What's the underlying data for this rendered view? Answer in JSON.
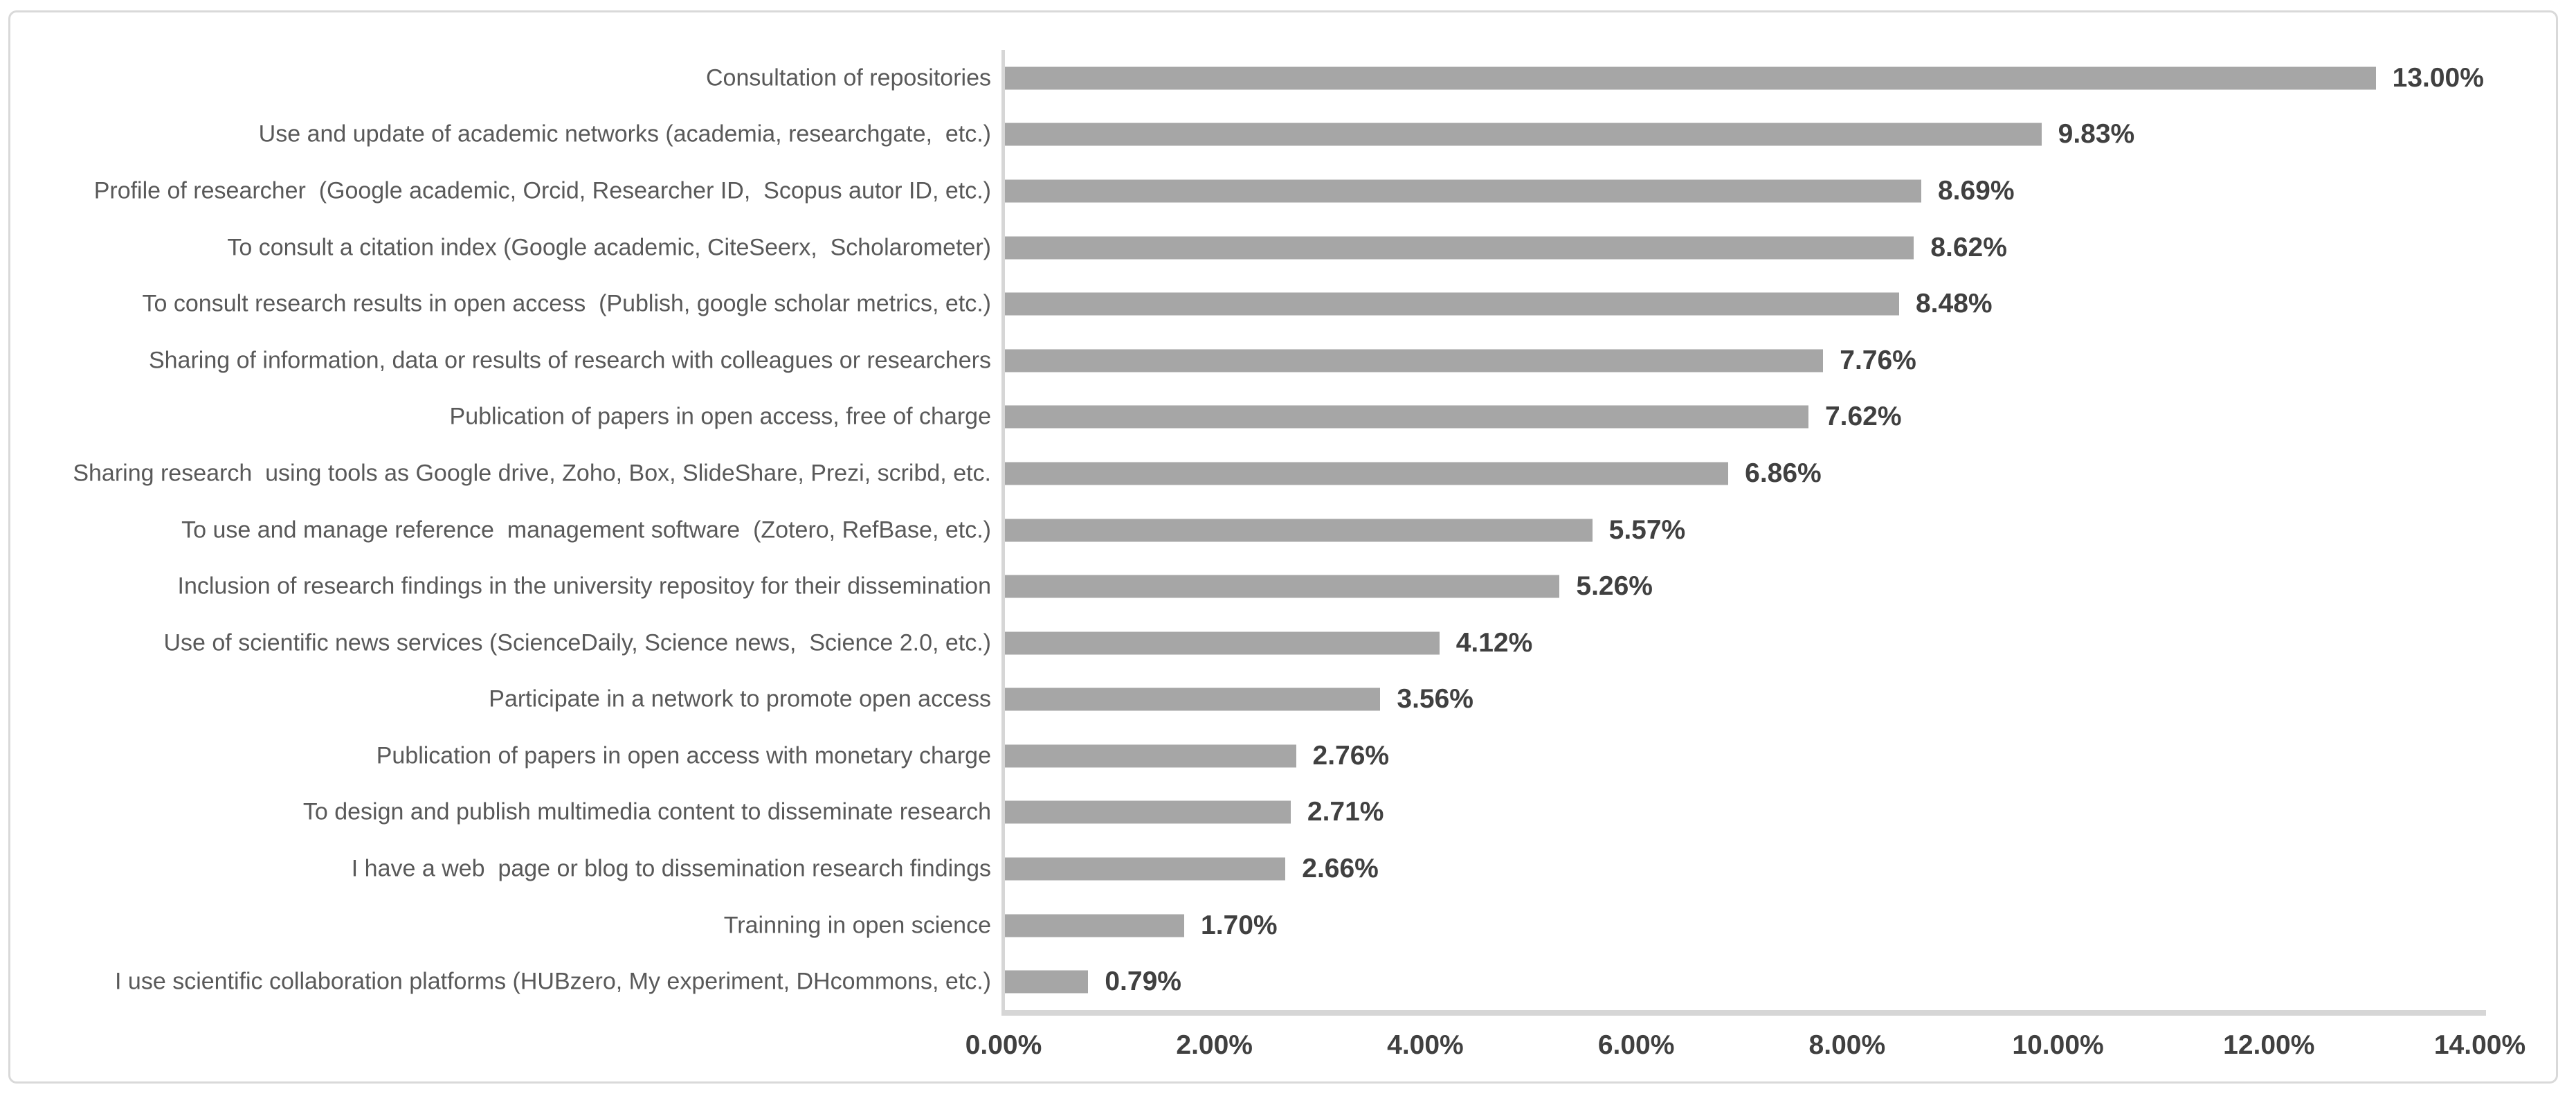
{
  "chart_data": {
    "type": "bar",
    "orientation": "horizontal",
    "title": "",
    "xlabel": "",
    "ylabel": "",
    "xlim": [
      0,
      14
    ],
    "x_tick_labels": [
      "0.00%",
      "2.00%",
      "4.00%",
      "6.00%",
      "8.00%",
      "10.00%",
      "12.00%",
      "14.00%"
    ],
    "grid": false,
    "legend": false,
    "bar_color": "#a6a6a6",
    "category_label_color": "#595959",
    "value_label_color": "#404040",
    "axis_line_color": "#d6d6d6",
    "border_color": "#d9d9d9",
    "categories": [
      "Consultation of repositories",
      "Use and update of academic networks (academia, researchgate,  etc.)",
      "Profile of researcher  (Google academic, Orcid, Researcher ID,  Scopus autor ID, etc.)",
      "To consult a citation index (Google academic, CiteSeerx,  Scholarometer)",
      "To consult research results in open access  (Publish, google scholar metrics, etc.)",
      "Sharing of information, data or results of research with colleagues or researchers",
      "Publication of papers in open access, free of charge",
      "Sharing research  using tools as Google drive, Zoho, Box, SlideShare, Prezi, scribd, etc.",
      "To use and manage reference  management software  (Zotero, RefBase, etc.)",
      "Inclusion of research findings in the university repositoy for their dissemination",
      "Use of scientific news services (ScienceDaily, Science news,  Science 2.0, etc.)",
      "Participate in a network to promote open access",
      "Publication of papers in open access with monetary charge",
      "To design and publish multimedia content to disseminate research",
      "I have a web  page or blog to dissemination research findings",
      "Trainning in open science",
      "I use scientific collaboration platforms (HUBzero, My experiment, DHcommons, etc.)"
    ],
    "values": [
      13.0,
      9.83,
      8.69,
      8.62,
      8.48,
      7.76,
      7.62,
      6.86,
      5.57,
      5.26,
      4.12,
      3.56,
      2.76,
      2.71,
      2.66,
      1.7,
      0.79
    ],
    "value_labels": [
      "13.00%",
      "9.83%",
      "8.69%",
      "8.62%",
      "8.48%",
      "7.76%",
      "7.62%",
      "6.86%",
      "5.57%",
      "5.26%",
      "4.12%",
      "3.56%",
      "2.76%",
      "2.71%",
      "2.66%",
      "1.70%",
      "0.79%"
    ]
  }
}
